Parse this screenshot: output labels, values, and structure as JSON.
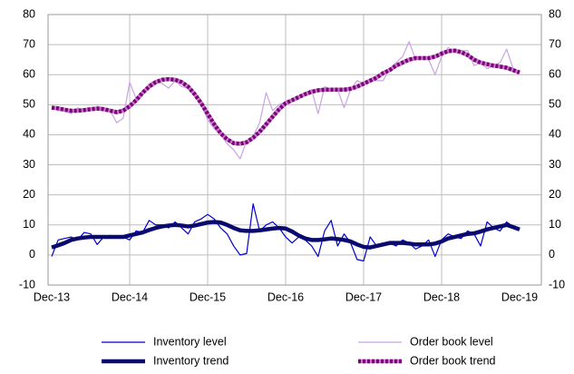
{
  "chart_data": {
    "type": "line",
    "categories": [
      "Dec-13",
      null,
      null,
      null,
      null,
      null,
      null,
      null,
      null,
      null,
      null,
      null,
      "Dec-14",
      null,
      null,
      null,
      null,
      null,
      null,
      null,
      null,
      null,
      null,
      null,
      "Dec-15",
      null,
      null,
      null,
      null,
      null,
      null,
      null,
      null,
      null,
      null,
      null,
      "Dec-16",
      null,
      null,
      null,
      null,
      null,
      null,
      null,
      null,
      null,
      null,
      null,
      "Dec-17",
      null,
      null,
      null,
      null,
      null,
      null,
      null,
      null,
      null,
      null,
      null,
      "Dec-18",
      null,
      null,
      null,
      null,
      null,
      null,
      null,
      null,
      null,
      null,
      null,
      "Dec-19"
    ],
    "series": [
      {
        "name": "Inventory level",
        "color": "#0000cc",
        "width": 1.2,
        "values": [
          -0.5,
          5,
          5.5,
          6,
          5,
          7.5,
          7,
          3.5,
          6,
          6.5,
          6,
          6,
          5,
          8,
          7.5,
          11.5,
          10,
          10,
          9,
          11,
          9,
          7,
          11,
          12,
          13.5,
          12,
          9,
          7,
          3,
          0,
          0.5,
          17,
          8,
          10,
          11,
          9,
          6,
          4,
          6,
          5,
          3,
          -0.5,
          8,
          11.5,
          3,
          7,
          4,
          -1.5,
          -2,
          6,
          3,
          4,
          4,
          3,
          5,
          4,
          2,
          3,
          5,
          -0.5,
          5,
          7,
          6,
          5.5,
          8,
          7,
          3,
          11,
          9,
          8,
          11,
          9.5,
          8.5
        ]
      },
      {
        "name": "Order book level",
        "color": "#c9a3e3",
        "width": 1.2,
        "values": [
          49.5,
          48,
          48,
          47,
          49,
          48,
          48,
          49.5,
          49,
          48,
          44,
          45.5,
          57.5,
          52,
          54,
          57,
          58,
          57,
          55.5,
          58,
          56,
          55.5,
          53,
          50,
          45,
          42,
          40,
          37,
          35,
          32,
          38,
          39.5,
          44,
          54,
          48,
          50,
          51,
          51,
          53,
          54,
          55,
          47,
          56,
          55,
          55,
          49,
          55,
          58,
          57,
          58,
          58,
          58,
          62,
          64,
          66,
          71,
          65,
          66,
          65,
          60,
          66,
          69,
          68,
          68,
          68,
          63,
          64,
          62,
          63,
          64,
          68.5,
          62,
          61
        ]
      },
      {
        "name": "Inventory trend",
        "color": "#0a0a6e",
        "width": 4.5,
        "values": [
          2.5,
          3.2,
          4,
          5,
          5.5,
          5.8,
          6,
          6,
          6,
          6,
          6,
          6,
          6.5,
          7,
          7.5,
          8.3,
          9,
          9.5,
          9.8,
          10,
          9.8,
          9.5,
          9.8,
          10.3,
          10.8,
          11,
          10.8,
          10,
          9,
          8.2,
          8,
          8,
          8.2,
          8.5,
          8.8,
          9,
          8.8,
          7.8,
          6.5,
          5.5,
          5,
          5,
          5.2,
          5.5,
          5.3,
          5,
          4.5,
          3.5,
          2.7,
          2.5,
          3,
          3.5,
          4,
          4,
          4,
          3.8,
          3.5,
          3.5,
          3.5,
          3.8,
          4.5,
          5.5,
          6,
          6.5,
          7,
          7.2,
          7.8,
          8.5,
          9,
          9.5,
          10,
          9.3,
          8.5
        ]
      },
      {
        "name": "Order book trend",
        "color": "#800080",
        "width": 4.5,
        "dotted": true,
        "values": [
          49,
          48.8,
          48.3,
          48,
          48,
          48.2,
          48.5,
          48.7,
          48.5,
          48,
          47.5,
          48,
          49.5,
          51.5,
          54,
          56,
          57.5,
          58.3,
          58.5,
          58.3,
          57.5,
          56,
          53.5,
          50.5,
          47,
          43.5,
          40.5,
          38.5,
          37.2,
          37,
          37.5,
          39,
          41,
          43.5,
          46,
          48.5,
          50.5,
          51.5,
          52.5,
          53.5,
          54.3,
          54.8,
          55,
          55,
          55,
          55,
          55.3,
          56,
          57,
          58,
          59,
          60.5,
          61.5,
          63,
          64,
          65,
          65.5,
          65.5,
          65.5,
          66,
          67,
          67.8,
          68,
          67.5,
          66.5,
          65,
          64,
          63.5,
          63,
          62.7,
          62.3,
          61.5,
          60.7
        ]
      }
    ],
    "ylim": [
      -10,
      80
    ],
    "yticks": [
      -10,
      0,
      10,
      20,
      30,
      40,
      50,
      60,
      70,
      80
    ],
    "y2lim": [
      -10,
      80
    ],
    "y2ticks": [
      -10,
      0,
      10,
      20,
      30,
      40,
      50,
      60,
      70,
      80
    ],
    "grid": true,
    "legend": "bottom"
  }
}
